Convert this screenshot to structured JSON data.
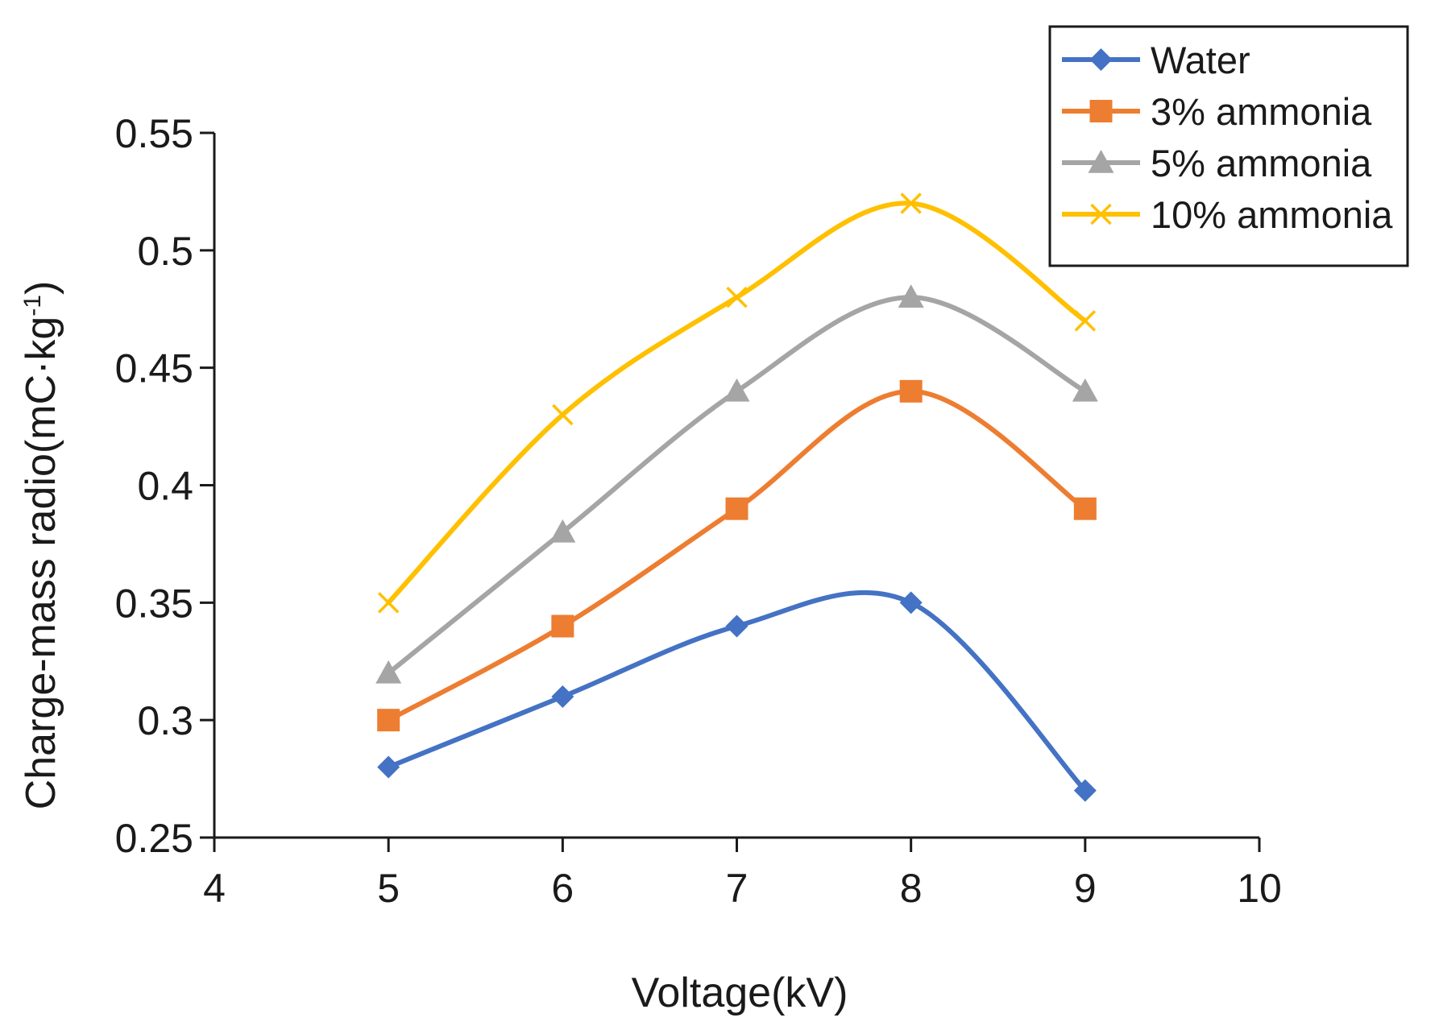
{
  "chart_data": {
    "type": "line",
    "title": "",
    "xlabel": "Voltage(kV)",
    "ylabel_main": "Charge-mass radio(mC·kg",
    "ylabel_sup": "-1",
    "ylabel_close": ")",
    "xlim": [
      4,
      10
    ],
    "ylim": [
      0.25,
      0.55
    ],
    "x_ticks": [
      4,
      5,
      6,
      7,
      8,
      9,
      10
    ],
    "x_tick_labels": [
      "4",
      "5",
      "6",
      "7",
      "8",
      "9",
      "10"
    ],
    "y_ticks": [
      0.25,
      0.3,
      0.35,
      0.4,
      0.45,
      0.5,
      0.55
    ],
    "y_tick_labels": [
      "0.25",
      "0.3",
      "0.35",
      "0.4",
      "0.45",
      "0.5",
      "0.55"
    ],
    "grid": false,
    "legend_position": "top-right",
    "smooth": true,
    "x": [
      5,
      6,
      7,
      8,
      9
    ],
    "series": [
      {
        "name": "Water",
        "values": [
          0.28,
          0.31,
          0.34,
          0.35,
          0.27
        ],
        "color": "#4472C4",
        "marker": "diamond"
      },
      {
        "name": "3% ammonia",
        "values": [
          0.3,
          0.34,
          0.39,
          0.44,
          0.39
        ],
        "color": "#ED7D31",
        "marker": "square"
      },
      {
        "name": "5% ammonia",
        "values": [
          0.32,
          0.38,
          0.44,
          0.48,
          0.44
        ],
        "color": "#A5A5A5",
        "marker": "triangle"
      },
      {
        "name": "10% ammonia",
        "values": [
          0.35,
          0.43,
          0.48,
          0.52,
          0.47
        ],
        "color": "#FFC000",
        "marker": "x"
      }
    ]
  }
}
